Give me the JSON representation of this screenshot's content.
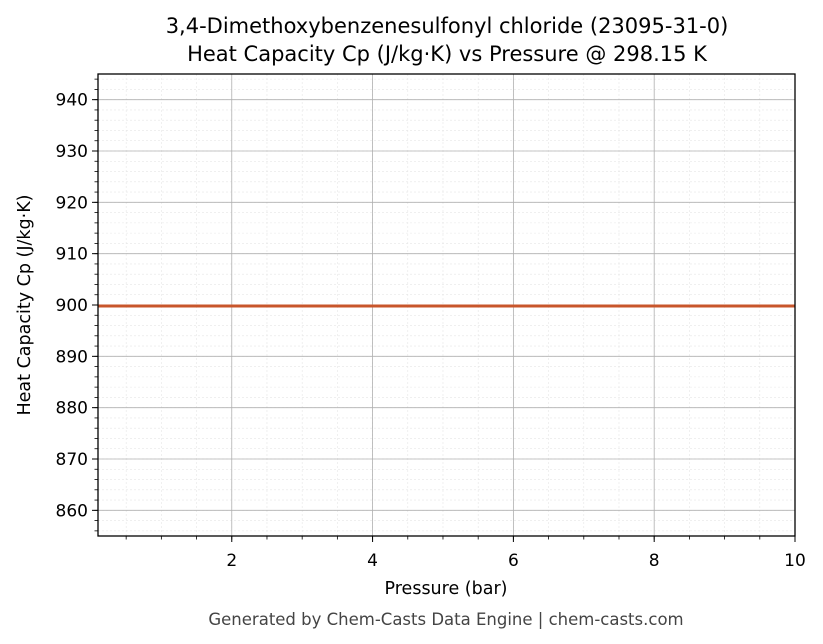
{
  "chart_data": {
    "type": "line",
    "title": "3,4-Dimethoxybenzenesulfonyl chloride (23095-31-0)",
    "subtitle": "Heat Capacity Cp (J/kg·K) vs Pressure @ 298.15 K",
    "xlabel": "Pressure (bar)",
    "ylabel": "Heat Capacity Cp (J/kg·K)",
    "xlim": [
      0.1,
      10
    ],
    "ylim": [
      855,
      945
    ],
    "x_ticks": [
      2,
      4,
      6,
      8,
      10
    ],
    "y_ticks": [
      860,
      870,
      880,
      890,
      900,
      910,
      920,
      930,
      940
    ],
    "grid": true,
    "series": [
      {
        "x": [
          0.1,
          10
        ],
        "y": [
          899.8,
          899.8
        ],
        "color": "#c8562b"
      }
    ]
  },
  "footer": "Generated by Chem-Casts Data Engine | chem-casts.com"
}
